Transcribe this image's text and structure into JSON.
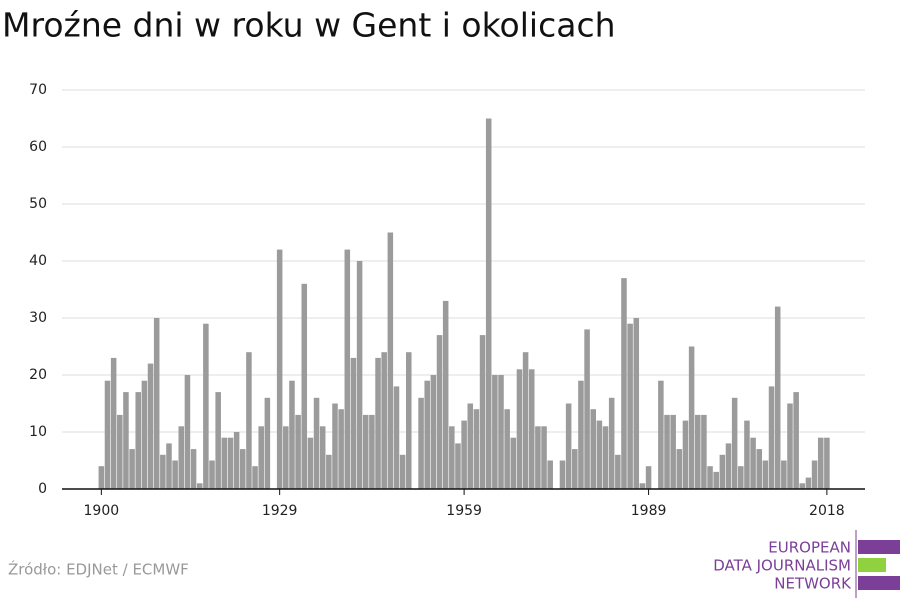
{
  "chart_data": {
    "type": "bar",
    "title": "Mroźne dni w roku w Gent i okolicach",
    "x": [
      1900,
      1901,
      1902,
      1903,
      1904,
      1905,
      1906,
      1907,
      1908,
      1909,
      1910,
      1911,
      1912,
      1913,
      1914,
      1915,
      1916,
      1917,
      1918,
      1919,
      1920,
      1921,
      1922,
      1923,
      1924,
      1925,
      1926,
      1927,
      1928,
      1929,
      1930,
      1931,
      1932,
      1933,
      1934,
      1935,
      1936,
      1937,
      1938,
      1939,
      1940,
      1941,
      1942,
      1943,
      1944,
      1945,
      1946,
      1947,
      1948,
      1949,
      1950,
      1951,
      1952,
      1953,
      1954,
      1955,
      1956,
      1957,
      1958,
      1959,
      1960,
      1961,
      1962,
      1963,
      1964,
      1965,
      1966,
      1967,
      1968,
      1969,
      1970,
      1971,
      1972,
      1973,
      1974,
      1975,
      1976,
      1977,
      1978,
      1979,
      1980,
      1981,
      1982,
      1983,
      1984,
      1985,
      1986,
      1987,
      1988,
      1989,
      1990,
      1991,
      1992,
      1993,
      1994,
      1995,
      1996,
      1997,
      1998,
      1999,
      2000,
      2001,
      2002,
      2003,
      2004,
      2005,
      2006,
      2007,
      2008,
      2009,
      2010,
      2011,
      2012,
      2013,
      2014,
      2015,
      2016,
      2017,
      2018
    ],
    "values": [
      4,
      19,
      23,
      13,
      17,
      7,
      17,
      19,
      22,
      30,
      6,
      8,
      5,
      11,
      20,
      7,
      1,
      29,
      5,
      17,
      9,
      9,
      10,
      7,
      24,
      4,
      11,
      16,
      0,
      42,
      11,
      19,
      13,
      36,
      9,
      16,
      11,
      6,
      15,
      14,
      42,
      23,
      40,
      13,
      13,
      23,
      24,
      45,
      18,
      6,
      24,
      0,
      16,
      19,
      20,
      27,
      33,
      11,
      8,
      12,
      15,
      14,
      27,
      65,
      20,
      20,
      14,
      9,
      21,
      24,
      21,
      11,
      11,
      5,
      0,
      5,
      15,
      7,
      19,
      28,
      14,
      12,
      11,
      16,
      6,
      37,
      29,
      30,
      1,
      4,
      0,
      19,
      13,
      13,
      7,
      12,
      25,
      13,
      13,
      4,
      3,
      6,
      8,
      16,
      4,
      12,
      9,
      7,
      5,
      18,
      32,
      5,
      15,
      17,
      1,
      2,
      5,
      9,
      9
    ],
    "color": "#9b9b9b",
    "xlim": [
      1893.6,
      2024.2
    ],
    "xticks": [
      1900,
      1929,
      1959,
      1989,
      2018
    ],
    "ylim": [
      0,
      70
    ],
    "yticks": [
      0,
      10,
      20,
      30,
      40,
      50,
      60,
      70
    ],
    "grid": true,
    "source": "Źródło: EDJNet / ECMWF",
    "logo": [
      "EUROPEAN",
      "DATA JOURNALISM",
      "NETWORK"
    ]
  }
}
